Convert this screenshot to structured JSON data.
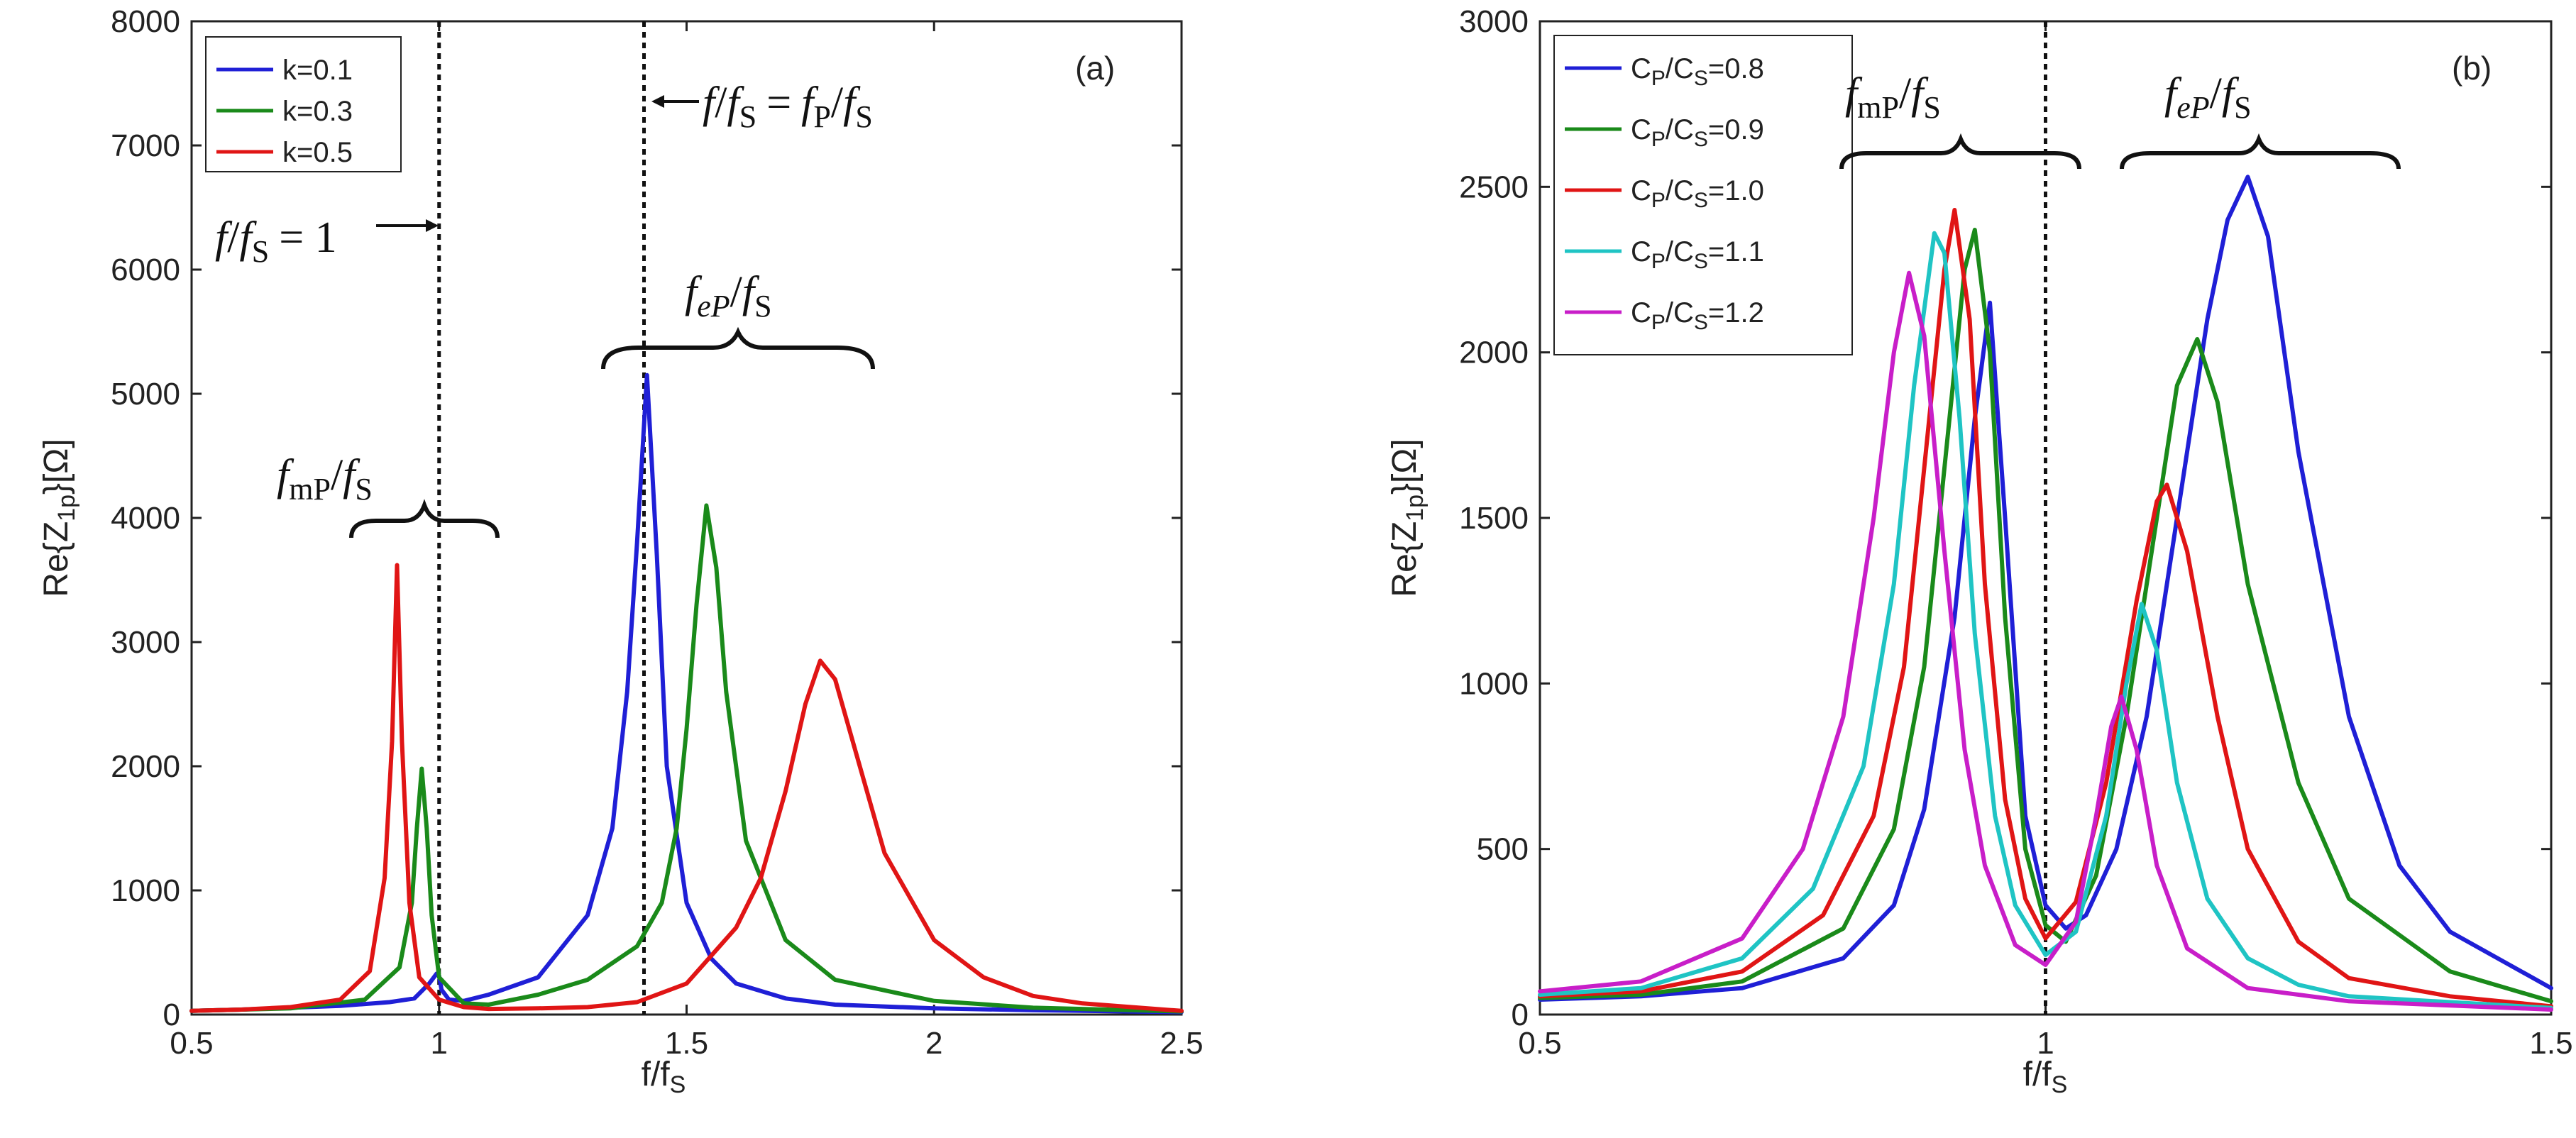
{
  "chart_data": [
    {
      "type": "line",
      "panel_label": "(a)",
      "xlabel": "f/f",
      "xlabel_sub": "S",
      "ylabel_pre": "Re{Z",
      "ylabel_sub": "1p",
      "ylabel_post": "}[Ω]",
      "xlim": [
        0.5,
        2.5
      ],
      "ylim": [
        0,
        8000
      ],
      "xticks": [
        0.5,
        1,
        1.5,
        2,
        2.5
      ],
      "xtick_labels": [
        "0.5",
        "1",
        "1.5",
        "2",
        "2.5"
      ],
      "yticks": [
        0,
        1000,
        2000,
        3000,
        4000,
        5000,
        6000,
        7000,
        8000
      ],
      "ytick_labels": [
        "0",
        "1000",
        "2000",
        "3000",
        "4000",
        "5000",
        "6000",
        "7000",
        "8000"
      ],
      "legend_position": "top-left",
      "series": [
        {
          "name": "k=0.1",
          "color": "#1f1fd6",
          "x": [
            0.5,
            0.6,
            0.7,
            0.8,
            0.9,
            0.95,
            0.98,
            0.995,
            1.0,
            1.005,
            1.02,
            1.05,
            1.1,
            1.2,
            1.3,
            1.35,
            1.38,
            1.4,
            1.42,
            1.44,
            1.46,
            1.5,
            1.55,
            1.6,
            1.7,
            1.8,
            2.0,
            2.2,
            2.5
          ],
          "y": [
            30,
            40,
            55,
            70,
            100,
            130,
            250,
            330,
            310,
            200,
            120,
            110,
            160,
            300,
            800,
            1500,
            2600,
            3800,
            5150,
            3700,
            2000,
            900,
            450,
            250,
            130,
            80,
            50,
            35,
            20
          ]
        },
        {
          "name": "k=0.3",
          "color": "#1a8a1a",
          "x": [
            0.5,
            0.7,
            0.85,
            0.92,
            0.945,
            0.955,
            0.965,
            0.975,
            0.985,
            1.0,
            1.05,
            1.1,
            1.2,
            1.3,
            1.4,
            1.45,
            1.48,
            1.5,
            1.52,
            1.54,
            1.56,
            1.58,
            1.62,
            1.7,
            1.8,
            2.0,
            2.2,
            2.5
          ],
          "y": [
            30,
            50,
            120,
            380,
            900,
            1500,
            1980,
            1500,
            800,
            300,
            90,
            80,
            160,
            280,
            550,
            900,
            1500,
            2300,
            3300,
            4100,
            3600,
            2600,
            1400,
            600,
            280,
            110,
            55,
            25
          ]
        },
        {
          "name": "k=0.5",
          "color": "#e01515",
          "x": [
            0.5,
            0.6,
            0.7,
            0.8,
            0.86,
            0.89,
            0.905,
            0.915,
            0.925,
            0.94,
            0.96,
            1.0,
            1.05,
            1.1,
            1.2,
            1.3,
            1.4,
            1.5,
            1.6,
            1.65,
            1.7,
            1.74,
            1.77,
            1.8,
            1.85,
            1.9,
            2.0,
            2.1,
            2.2,
            2.3,
            2.5
          ],
          "y": [
            30,
            40,
            60,
            120,
            350,
            1100,
            2200,
            3620,
            2200,
            900,
            300,
            120,
            60,
            45,
            50,
            60,
            100,
            250,
            700,
            1100,
            1800,
            2500,
            2850,
            2700,
            2000,
            1300,
            600,
            300,
            150,
            90,
            30
          ]
        }
      ],
      "vlines": [
        1.0,
        1.414
      ],
      "annotations": {
        "f1_f": "f",
        "f1_div": "/",
        "f1_fs": "f",
        "f1_S": "S",
        "f1_eq": "= 1",
        "fp_f": "f",
        "fp_div": "/",
        "fp_fs": "f",
        "fp_S": "S",
        "fp_eq": "=",
        "fp_fP": "f",
        "fp_P": "P",
        "fp_div2": "/",
        "fp_fs2": "f",
        "fp_S2": "S",
        "feP_f": "f",
        "feP_sub": "eP",
        "feP_div": "/",
        "feP_fs": "f",
        "feP_S": "S",
        "fmP_f": "f",
        "fmP_sub": "mP",
        "fmP_div": "/",
        "fmP_fs": "f",
        "fmP_S": "S"
      }
    },
    {
      "type": "line",
      "panel_label": "(b)",
      "xlabel": "f/f",
      "xlabel_sub": "S",
      "ylabel_pre": "Re{Z",
      "ylabel_sub": "1p",
      "ylabel_post": "}[Ω]",
      "xlim": [
        0.5,
        1.5
      ],
      "ylim": [
        0,
        3000
      ],
      "xticks": [
        0.5,
        1,
        1.5
      ],
      "xtick_labels": [
        "0.5",
        "1",
        "1.5"
      ],
      "yticks": [
        0,
        500,
        1000,
        1500,
        2000,
        2500,
        3000
      ],
      "ytick_labels": [
        "0",
        "500",
        "1000",
        "1500",
        "2000",
        "2500",
        "3000"
      ],
      "legend_position": "top-left",
      "series": [
        {
          "name": "C",
          "name_sub1": "P",
          "name_mid": "/C",
          "name_sub2": "S",
          "name_val": "=0.8",
          "color": "#1f1fd6",
          "x": [
            0.5,
            0.6,
            0.7,
            0.8,
            0.85,
            0.88,
            0.91,
            0.93,
            0.945,
            0.96,
            0.98,
            1.0,
            1.02,
            1.04,
            1.07,
            1.1,
            1.13,
            1.16,
            1.18,
            1.2,
            1.22,
            1.25,
            1.3,
            1.35,
            1.4,
            1.5
          ],
          "y": [
            45,
            55,
            80,
            170,
            330,
            620,
            1200,
            1800,
            2150,
            1500,
            600,
            330,
            260,
            300,
            500,
            900,
            1500,
            2100,
            2400,
            2530,
            2350,
            1700,
            900,
            450,
            250,
            80
          ]
        },
        {
          "name": "C",
          "name_sub1": "P",
          "name_mid": "/C",
          "name_sub2": "S",
          "name_val": "=0.9",
          "color": "#1a8a1a",
          "x": [
            0.5,
            0.6,
            0.7,
            0.8,
            0.85,
            0.88,
            0.9,
            0.92,
            0.93,
            0.945,
            0.96,
            0.98,
            1.0,
            1.02,
            1.05,
            1.08,
            1.11,
            1.13,
            1.15,
            1.17,
            1.2,
            1.25,
            1.3,
            1.4,
            1.5
          ],
          "y": [
            50,
            60,
            100,
            260,
            560,
            1050,
            1650,
            2250,
            2370,
            2000,
            1200,
            500,
            270,
            220,
            420,
            900,
            1500,
            1900,
            2040,
            1850,
            1300,
            700,
            350,
            130,
            40
          ]
        },
        {
          "name": "C",
          "name_sub1": "P",
          "name_mid": "/C",
          "name_sub2": "S",
          "name_val": "=1.0",
          "color": "#e01515",
          "x": [
            0.5,
            0.6,
            0.7,
            0.78,
            0.83,
            0.86,
            0.88,
            0.9,
            0.91,
            0.925,
            0.94,
            0.96,
            0.98,
            1.0,
            1.03,
            1.06,
            1.09,
            1.11,
            1.12,
            1.14,
            1.17,
            1.2,
            1.25,
            1.3,
            1.4,
            1.5
          ],
          "y": [
            55,
            70,
            130,
            300,
            600,
            1050,
            1650,
            2250,
            2430,
            2100,
            1300,
            650,
            350,
            230,
            340,
            700,
            1250,
            1550,
            1600,
            1400,
            900,
            500,
            220,
            110,
            55,
            25
          ]
        },
        {
          "name": "C",
          "name_sub1": "P",
          "name_mid": "/C",
          "name_sub2": "S",
          "name_val": "=1.1",
          "color": "#1fc4c4",
          "x": [
            0.5,
            0.6,
            0.7,
            0.77,
            0.82,
            0.85,
            0.87,
            0.89,
            0.9,
            0.915,
            0.93,
            0.95,
            0.97,
            1.0,
            1.03,
            1.06,
            1.08,
            1.095,
            1.11,
            1.13,
            1.16,
            1.2,
            1.25,
            1.3,
            1.5
          ],
          "y": [
            60,
            80,
            170,
            380,
            750,
            1300,
            1900,
            2360,
            2300,
            1800,
            1150,
            600,
            330,
            180,
            250,
            600,
            1000,
            1240,
            1100,
            700,
            350,
            170,
            90,
            55,
            20
          ]
        },
        {
          "name": "C",
          "name_sub1": "P",
          "name_mid": "/C",
          "name_sub2": "S",
          "name_val": "=1.2",
          "color": "#c81ec8",
          "x": [
            0.5,
            0.6,
            0.7,
            0.76,
            0.8,
            0.83,
            0.85,
            0.865,
            0.88,
            0.9,
            0.92,
            0.94,
            0.97,
            1.0,
            1.03,
            1.05,
            1.065,
            1.075,
            1.09,
            1.11,
            1.14,
            1.2,
            1.3,
            1.5
          ],
          "y": [
            70,
            100,
            230,
            500,
            900,
            1500,
            2000,
            2240,
            2050,
            1400,
            800,
            450,
            210,
            150,
            280,
            600,
            870,
            960,
            800,
            450,
            200,
            80,
            40,
            15
          ]
        }
      ],
      "vlines": [
        1.0
      ],
      "annotations": {
        "fmP_f": "f",
        "fmP_sub": "mP",
        "fmP_div": "/",
        "fmP_fs": "f",
        "fmP_S": "S",
        "feP_f": "f",
        "feP_sub": "eP",
        "feP_div": "/",
        "feP_fs": "f",
        "feP_S": "S"
      }
    }
  ]
}
